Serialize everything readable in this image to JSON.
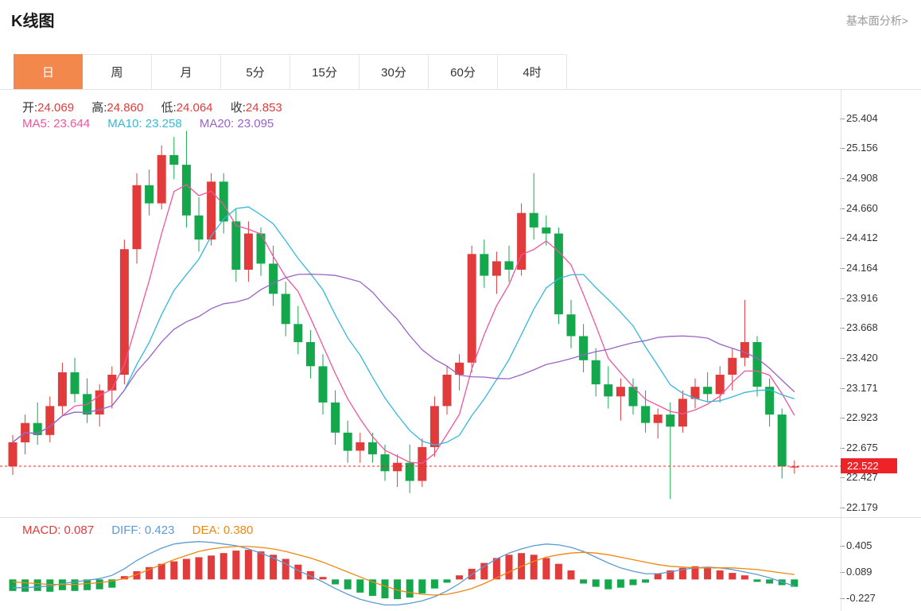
{
  "header": {
    "title": "K线图",
    "link": "基本面分析>"
  },
  "tabs": {
    "items": [
      {
        "label": "日",
        "active": true
      },
      {
        "label": "周",
        "active": false
      },
      {
        "label": "月",
        "active": false
      },
      {
        "label": "5分",
        "active": false
      },
      {
        "label": "15分",
        "active": false
      },
      {
        "label": "30分",
        "active": false
      },
      {
        "label": "60分",
        "active": false
      },
      {
        "label": "4时",
        "active": false
      }
    ]
  },
  "legend": {
    "ohlc": [
      {
        "label": "开:",
        "value": "24.069"
      },
      {
        "label": "高:",
        "value": "24.860"
      },
      {
        "label": "低:",
        "value": "24.064"
      },
      {
        "label": "收:",
        "value": "24.853"
      }
    ],
    "ma": [
      {
        "label": "MA5:",
        "value": "23.644"
      },
      {
        "label": "MA10:",
        "value": "23.258"
      },
      {
        "label": "MA20:",
        "value": "23.095"
      }
    ]
  },
  "macd_legend": [
    {
      "label": "MACD:",
      "value": "0.087"
    },
    {
      "label": "DIFF:",
      "value": "0.423"
    },
    {
      "label": "DEA:",
      "value": "0.380"
    }
  ],
  "price_tag": "22.522",
  "colors": {
    "up": "#e23b3c",
    "down": "#14a74c",
    "ma5": "#f0559d",
    "ma10": "#33b8dc",
    "ma20": "#9b62c9",
    "diff": "#5b9bd5",
    "dea": "#f0870f",
    "accent": "#f2884b",
    "price_line": "#ee2328",
    "link": "#999999"
  },
  "chart_data": {
    "type": "candlestick",
    "title": "K线图",
    "ma_periods": [
      5,
      10,
      20
    ],
    "main": {
      "ylim": [
        22.1,
        25.64
      ],
      "y_axis_labels": [
        25.404,
        25.156,
        24.908,
        24.66,
        24.412,
        24.164,
        23.916,
        23.668,
        23.42,
        23.171,
        22.923,
        22.675,
        22.427,
        22.179
      ],
      "current_price": 22.522,
      "candles": [
        [
          22.52,
          22.78,
          22.45,
          22.72
        ],
        [
          22.72,
          22.95,
          22.62,
          22.88
        ],
        [
          22.88,
          23.05,
          22.7,
          22.78
        ],
        [
          22.78,
          23.1,
          22.72,
          23.02
        ],
        [
          23.02,
          23.38,
          22.95,
          23.3
        ],
        [
          23.3,
          23.42,
          23.05,
          23.12
        ],
        [
          23.12,
          23.25,
          22.88,
          22.95
        ],
        [
          22.95,
          23.2,
          22.85,
          23.15
        ],
        [
          23.15,
          23.35,
          23.0,
          23.28
        ],
        [
          23.28,
          24.4,
          23.2,
          24.32
        ],
        [
          24.32,
          24.95,
          24.2,
          24.85
        ],
        [
          24.85,
          24.98,
          24.6,
          24.7
        ],
        [
          24.7,
          25.18,
          24.65,
          25.1
        ],
        [
          25.1,
          25.25,
          24.9,
          25.02
        ],
        [
          25.02,
          25.3,
          24.5,
          24.6
        ],
        [
          24.6,
          24.75,
          24.3,
          24.4
        ],
        [
          24.4,
          24.95,
          24.35,
          24.88
        ],
        [
          24.88,
          24.95,
          24.45,
          24.55
        ],
        [
          24.55,
          24.65,
          24.05,
          24.15
        ],
        [
          24.15,
          24.55,
          24.05,
          24.45
        ],
        [
          24.45,
          24.5,
          24.1,
          24.2
        ],
        [
          24.2,
          24.35,
          23.85,
          23.95
        ],
        [
          23.95,
          24.05,
          23.6,
          23.7
        ],
        [
          23.7,
          23.85,
          23.45,
          23.55
        ],
        [
          23.55,
          23.65,
          23.25,
          23.35
        ],
        [
          23.35,
          23.45,
          22.95,
          23.05
        ],
        [
          23.05,
          23.15,
          22.7,
          22.8
        ],
        [
          22.8,
          22.9,
          22.55,
          22.65
        ],
        [
          22.65,
          22.8,
          22.55,
          22.72
        ],
        [
          22.72,
          22.8,
          22.55,
          22.62
        ],
        [
          22.62,
          22.7,
          22.4,
          22.48
        ],
        [
          22.48,
          22.62,
          22.35,
          22.55
        ],
        [
          22.55,
          22.7,
          22.3,
          22.4
        ],
        [
          22.4,
          22.75,
          22.35,
          22.68
        ],
        [
          22.68,
          23.1,
          22.6,
          23.02
        ],
        [
          23.02,
          23.35,
          22.95,
          23.28
        ],
        [
          23.28,
          23.45,
          23.15,
          23.38
        ],
        [
          23.38,
          24.35,
          23.3,
          24.28
        ],
        [
          24.28,
          24.4,
          24.0,
          24.1
        ],
        [
          24.1,
          24.3,
          23.95,
          24.22
        ],
        [
          24.22,
          24.35,
          24.05,
          24.15
        ],
        [
          24.15,
          24.7,
          24.1,
          24.62
        ],
        [
          24.62,
          24.95,
          24.4,
          24.5
        ],
        [
          24.5,
          24.6,
          24.35,
          24.45
        ],
        [
          24.45,
          24.5,
          23.7,
          23.78
        ],
        [
          23.78,
          23.9,
          23.5,
          23.6
        ],
        [
          23.6,
          23.7,
          23.3,
          23.4
        ],
        [
          23.4,
          23.5,
          23.1,
          23.2
        ],
        [
          23.2,
          23.35,
          23.0,
          23.1
        ],
        [
          23.1,
          23.25,
          22.9,
          23.18
        ],
        [
          23.18,
          23.25,
          22.95,
          23.02
        ],
        [
          23.02,
          23.15,
          22.8,
          22.88
        ],
        [
          22.88,
          23.0,
          22.75,
          22.95
        ],
        [
          22.95,
          23.05,
          22.25,
          22.85
        ],
        [
          22.85,
          23.15,
          22.8,
          23.08
        ],
        [
          23.08,
          23.25,
          23.0,
          23.18
        ],
        [
          23.18,
          23.3,
          23.05,
          23.12
        ],
        [
          23.12,
          23.35,
          23.05,
          23.28
        ],
        [
          23.28,
          23.5,
          23.15,
          23.42
        ],
        [
          23.42,
          23.9,
          23.35,
          23.55
        ],
        [
          23.55,
          23.6,
          23.1,
          23.18
        ],
        [
          23.18,
          23.25,
          22.85,
          22.95
        ],
        [
          22.95,
          23.0,
          22.42,
          22.52
        ],
        [
          22.52,
          22.57,
          22.46,
          22.52
        ]
      ]
    },
    "macd": {
      "ylim": [
        -0.383,
        0.747
      ],
      "y_axis_labels": [
        0.405,
        0.089,
        -0.227
      ],
      "hist": [
        -0.14,
        -0.15,
        -0.14,
        -0.15,
        -0.13,
        -0.14,
        -0.13,
        -0.12,
        -0.1,
        0.04,
        0.1,
        0.15,
        0.19,
        0.22,
        0.25,
        0.27,
        0.29,
        0.32,
        0.35,
        0.36,
        0.34,
        0.3,
        0.25,
        0.18,
        0.1,
        0.03,
        -0.06,
        -0.12,
        -0.16,
        -0.2,
        -0.23,
        -0.24,
        -0.22,
        -0.17,
        -0.11,
        -0.04,
        0.05,
        0.13,
        0.2,
        0.26,
        0.3,
        0.32,
        0.3,
        0.26,
        0.19,
        0.11,
        -0.05,
        -0.09,
        -0.12,
        -0.1,
        -0.07,
        -0.04,
        0.07,
        0.11,
        0.14,
        0.16,
        0.14,
        0.11,
        0.08,
        0.05,
        -0.03,
        -0.05,
        -0.07,
        -0.09
      ],
      "diff": [
        -0.1,
        -0.1,
        -0.09,
        -0.08,
        -0.05,
        -0.03,
        -0.01,
        0.01,
        0.05,
        0.13,
        0.23,
        0.31,
        0.38,
        0.43,
        0.45,
        0.46,
        0.45,
        0.43,
        0.41,
        0.37,
        0.32,
        0.26,
        0.19,
        0.11,
        0.04,
        -0.03,
        -0.11,
        -0.18,
        -0.24,
        -0.28,
        -0.31,
        -0.31,
        -0.29,
        -0.26,
        -0.21,
        -0.14,
        -0.05,
        0.06,
        0.16,
        0.25,
        0.32,
        0.37,
        0.41,
        0.43,
        0.42,
        0.39,
        0.34,
        0.27,
        0.2,
        0.14,
        0.1,
        0.07,
        0.07,
        0.09,
        0.12,
        0.14,
        0.15,
        0.14,
        0.12,
        0.09,
        0.06,
        0.02,
        -0.03,
        -0.08
      ],
      "dea": [
        -0.03,
        -0.04,
        -0.05,
        -0.06,
        -0.06,
        -0.06,
        -0.05,
        -0.04,
        -0.02,
        0.01,
        0.06,
        0.12,
        0.18,
        0.24,
        0.29,
        0.34,
        0.37,
        0.39,
        0.4,
        0.4,
        0.39,
        0.37,
        0.34,
        0.3,
        0.26,
        0.21,
        0.15,
        0.09,
        0.03,
        -0.03,
        -0.08,
        -0.13,
        -0.16,
        -0.18,
        -0.19,
        -0.18,
        -0.15,
        -0.11,
        -0.05,
        0.02,
        0.09,
        0.16,
        0.22,
        0.27,
        0.3,
        0.32,
        0.33,
        0.32,
        0.3,
        0.27,
        0.24,
        0.21,
        0.18,
        0.16,
        0.15,
        0.14,
        0.14,
        0.14,
        0.14,
        0.13,
        0.12,
        0.1,
        0.08,
        0.06
      ]
    }
  }
}
